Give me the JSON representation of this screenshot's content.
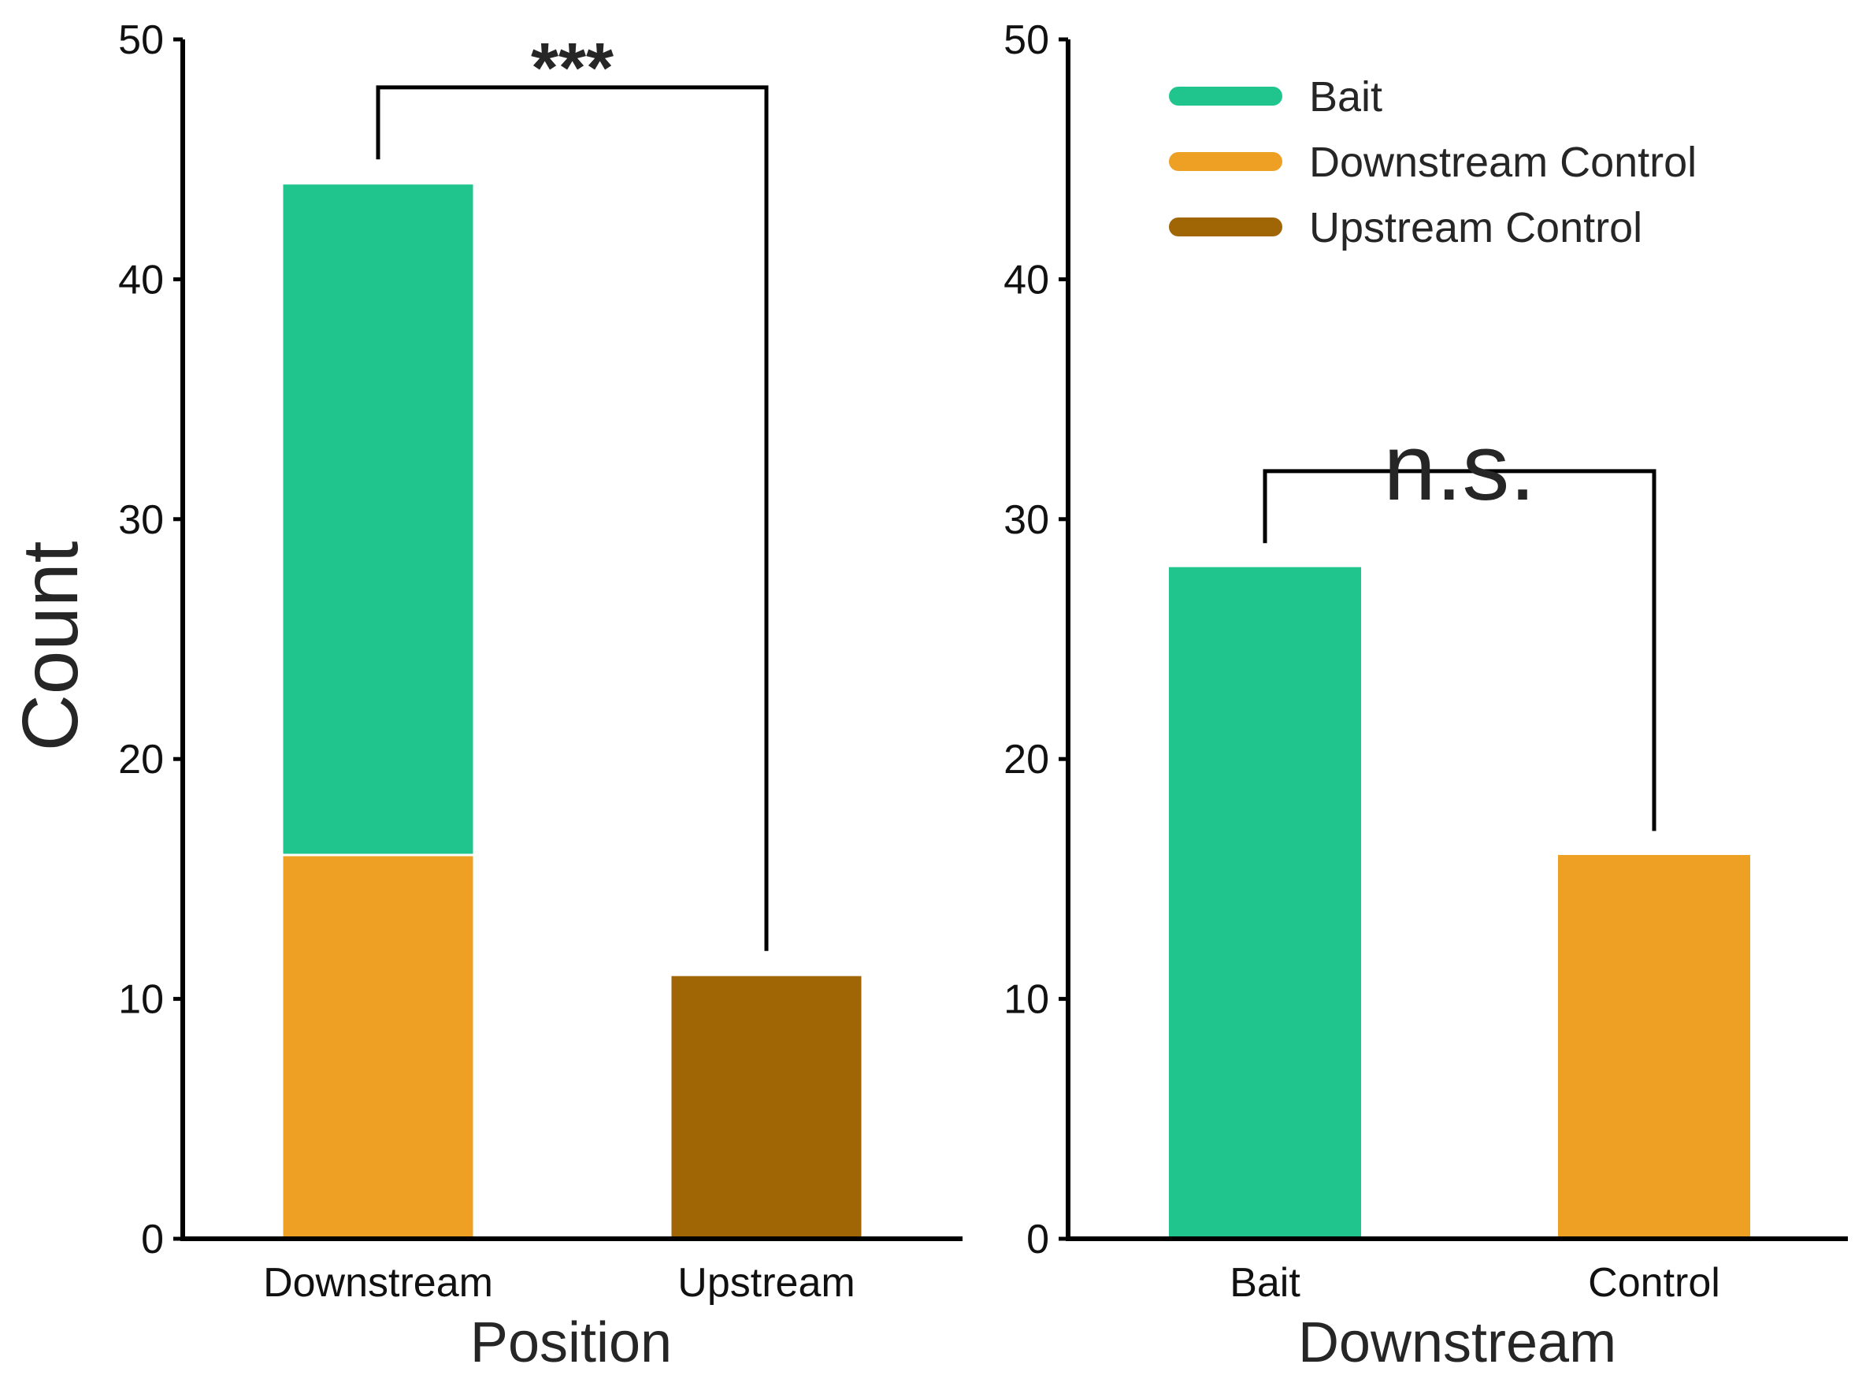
{
  "colors": {
    "bait": "#1fc58c",
    "downstream_control": "#eea024",
    "upstream_control": "#a06505"
  },
  "chart_data": [
    {
      "type": "bar",
      "stacked": true,
      "xlabel": "Position",
      "ylabel": "Count",
      "categories": [
        "Downstream",
        "Upstream"
      ],
      "series": [
        {
          "name": "Downstream Control",
          "color_key": "downstream_control",
          "values": [
            16,
            0
          ]
        },
        {
          "name": "Bait",
          "color_key": "bait",
          "values": [
            28,
            0
          ]
        },
        {
          "name": "Upstream Control",
          "color_key": "upstream_control",
          "values": [
            0,
            11
          ]
        }
      ],
      "ylim": [
        0,
        50
      ],
      "yticks": [
        "0",
        "10",
        "20",
        "30",
        "40",
        "50"
      ],
      "significance": {
        "label": "***",
        "between": [
          "Downstream",
          "Upstream"
        ],
        "y": 48
      }
    },
    {
      "type": "bar",
      "stacked": false,
      "xlabel": "Downstream",
      "ylabel": "",
      "categories": [
        "Bait",
        "Control"
      ],
      "values": [
        28,
        16
      ],
      "bar_color_keys": [
        "bait",
        "downstream_control"
      ],
      "ylim": [
        0,
        50
      ],
      "yticks": [
        "0",
        "10",
        "20",
        "30",
        "40",
        "50"
      ],
      "significance": {
        "label": "n.s.",
        "between": [
          "Bait",
          "Control"
        ],
        "y": 32
      }
    }
  ],
  "legend": {
    "position": "top-right",
    "items": [
      {
        "label": "Bait",
        "color_key": "bait"
      },
      {
        "label": "Downstream Control",
        "color_key": "downstream_control"
      },
      {
        "label": "Upstream Control",
        "color_key": "upstream_control"
      }
    ]
  }
}
